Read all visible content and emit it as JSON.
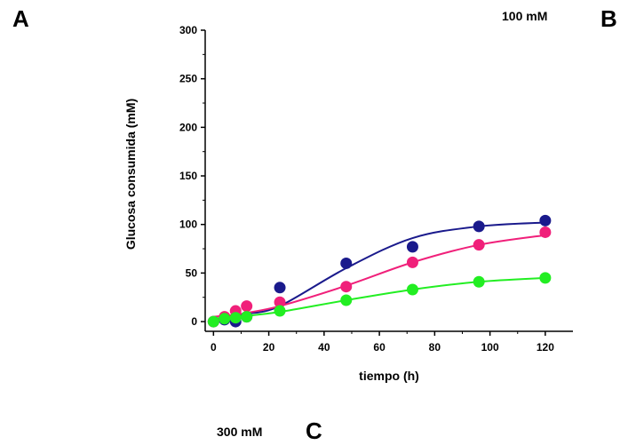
{
  "labels": {
    "panel_a": "A",
    "panel_b": "B",
    "panel_c": "C",
    "conc_b": "100 mM",
    "conc_c": "300 mM"
  },
  "chart_data": {
    "type": "scatter",
    "xlabel": "tiempo (h)",
    "ylabel": "Glucosa consumida (mM)",
    "xlim": [
      -3,
      130
    ],
    "ylim": [
      -10,
      300
    ],
    "xticks": [
      0,
      20,
      40,
      60,
      80,
      100,
      120
    ],
    "yticks": [
      0,
      50,
      100,
      150,
      200,
      250,
      300
    ],
    "grid": false,
    "series": [
      {
        "color": "#1a1a8c",
        "x": [
          0,
          4,
          8,
          12,
          24,
          48,
          72,
          96,
          120
        ],
        "y": [
          0,
          2,
          0,
          5,
          35,
          60,
          77,
          98,
          104
        ],
        "fit_y": [
          3,
          4,
          6,
          8,
          16,
          55,
          86,
          98,
          102
        ]
      },
      {
        "color": "#f0207a",
        "x": [
          0,
          4,
          8,
          12,
          24,
          48,
          72,
          96,
          120
        ],
        "y": [
          0,
          5,
          11,
          16,
          20,
          36,
          61,
          79,
          92
        ],
        "fit_y": [
          5,
          6,
          7,
          9,
          16,
          37,
          61,
          79,
          89
        ]
      },
      {
        "color": "#22ee22",
        "x": [
          0,
          4,
          8,
          12,
          24,
          48,
          72,
          96,
          120
        ],
        "y": [
          0,
          3,
          4,
          5,
          11,
          22,
          33,
          41,
          45
        ],
        "fit_y": [
          3,
          4,
          5,
          6,
          10,
          22,
          33,
          41,
          45
        ]
      }
    ]
  }
}
